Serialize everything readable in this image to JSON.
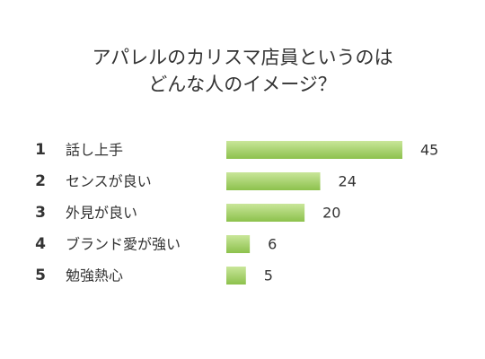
{
  "chart_data": {
    "type": "bar",
    "orientation": "horizontal",
    "title_lines": [
      "アパレルのカリスマ店員というのは",
      "どんな人のイメージ？"
    ],
    "ranks": [
      "1",
      "2",
      "3",
      "4",
      "5"
    ],
    "categories": [
      "話し上手",
      "センスが良い",
      "外見が良い",
      "ブランド愛が強い",
      "勉強熱心"
    ],
    "values": [
      45,
      24,
      20,
      6,
      5
    ],
    "xlim": [
      0,
      45
    ],
    "grid": false,
    "legend": "none",
    "colors": {
      "bar_light": "#c9e69a",
      "bar_dark": "#8cc14c",
      "text": "#333333"
    }
  }
}
